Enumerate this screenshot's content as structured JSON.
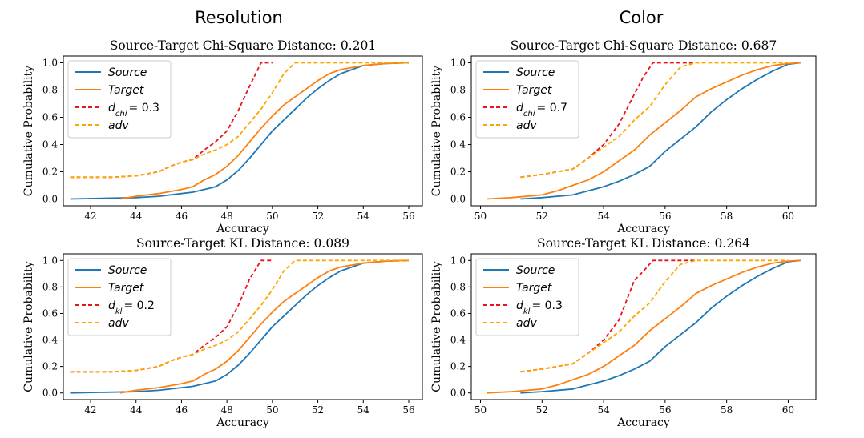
{
  "column_titles": [
    "Resolution",
    "Color"
  ],
  "colors": {
    "source": "#1f77b4",
    "target": "#ff7f0e",
    "dist": "#e8141c",
    "adv": "#ffa500"
  },
  "chart_data": [
    {
      "type": "line",
      "title": "Source-Target Chi-Square Distance: 0.201",
      "xlabel": "Accuracy",
      "ylabel": "Cumulative Probability",
      "xlim": [
        40.8,
        56.6
      ],
      "ylim": [
        -0.05,
        1.05
      ],
      "xticks": [
        42,
        44,
        46,
        48,
        50,
        52,
        54,
        56
      ],
      "yticks": [
        0.0,
        0.2,
        0.4,
        0.6,
        0.8,
        1.0
      ],
      "legend_position": "top-left",
      "grid": false,
      "series": [
        {
          "name": "Source",
          "style": "solid",
          "color_key": "source",
          "x": [
            41.1,
            44.0,
            45.0,
            46.0,
            46.5,
            47.0,
            47.5,
            48.0,
            48.5,
            49.0,
            49.5,
            50.0,
            50.5,
            51.0,
            51.5,
            52.0,
            52.5,
            53.0,
            53.5,
            54.0,
            55.0,
            56.0
          ],
          "y": [
            0.0,
            0.01,
            0.02,
            0.04,
            0.05,
            0.07,
            0.09,
            0.14,
            0.21,
            0.3,
            0.4,
            0.5,
            0.58,
            0.66,
            0.74,
            0.81,
            0.87,
            0.92,
            0.95,
            0.98,
            0.995,
            1.0
          ]
        },
        {
          "name": "Target",
          "style": "solid",
          "color_key": "target",
          "x": [
            43.3,
            44.0,
            45.0,
            46.0,
            46.5,
            47.0,
            47.5,
            48.0,
            48.5,
            49.0,
            49.5,
            50.0,
            50.5,
            51.0,
            51.5,
            52.0,
            52.5,
            53.0,
            54.0,
            55.0,
            56.0
          ],
          "y": [
            0.0,
            0.02,
            0.04,
            0.07,
            0.09,
            0.14,
            0.18,
            0.24,
            0.32,
            0.42,
            0.52,
            0.61,
            0.69,
            0.75,
            0.81,
            0.87,
            0.92,
            0.95,
            0.98,
            0.995,
            1.0
          ]
        },
        {
          "name": "d_chi = 0.3",
          "style": "dashed",
          "color_key": "dist",
          "x": [
            41.1,
            43.0,
            44.0,
            45.0,
            45.5,
            46.0,
            46.5,
            47.0,
            47.5,
            48.0,
            48.5,
            49.0,
            49.5,
            50.0
          ],
          "y": [
            0.16,
            0.16,
            0.17,
            0.2,
            0.24,
            0.27,
            0.29,
            0.36,
            0.42,
            0.5,
            0.65,
            0.83,
            1.0,
            1.0
          ]
        },
        {
          "name": "adv",
          "style": "dashed",
          "color_key": "adv",
          "x": [
            41.1,
            43.0,
            44.0,
            45.0,
            45.5,
            46.0,
            46.5,
            47.0,
            47.5,
            48.0,
            48.5,
            49.0,
            49.5,
            50.0,
            50.5,
            51.0,
            52.0,
            54.0,
            56.0
          ],
          "y": [
            0.16,
            0.16,
            0.17,
            0.2,
            0.24,
            0.27,
            0.29,
            0.33,
            0.36,
            0.4,
            0.46,
            0.56,
            0.66,
            0.78,
            0.92,
            1.0,
            1.0,
            1.0,
            1.0
          ]
        }
      ]
    },
    {
      "type": "line",
      "title": "Source-Target Chi-Square Distance: 0.687",
      "xlabel": "Accuracy",
      "ylabel": "Cumulative Probability",
      "xlim": [
        49.7,
        60.9
      ],
      "ylim": [
        -0.05,
        1.05
      ],
      "xticks": [
        50,
        52,
        54,
        56,
        58,
        60
      ],
      "yticks": [
        0.0,
        0.2,
        0.4,
        0.6,
        0.8,
        1.0
      ],
      "legend_position": "top-left",
      "grid": false,
      "series": [
        {
          "name": "Source",
          "style": "solid",
          "color_key": "source",
          "x": [
            51.3,
            52.0,
            53.0,
            54.0,
            54.5,
            55.0,
            55.5,
            56.0,
            56.5,
            57.0,
            57.5,
            58.0,
            58.5,
            59.0,
            59.5,
            60.0,
            60.4
          ],
          "y": [
            0.0,
            0.01,
            0.03,
            0.09,
            0.13,
            0.18,
            0.24,
            0.35,
            0.44,
            0.53,
            0.64,
            0.73,
            0.81,
            0.88,
            0.94,
            0.99,
            1.0
          ]
        },
        {
          "name": "Target",
          "style": "solid",
          "color_key": "target",
          "x": [
            50.2,
            51.0,
            52.0,
            52.5,
            53.0,
            53.5,
            54.0,
            54.5,
            55.0,
            55.5,
            56.0,
            56.5,
            57.0,
            57.5,
            58.0,
            58.5,
            59.0,
            59.5,
            60.0,
            60.4
          ],
          "y": [
            0.0,
            0.01,
            0.03,
            0.06,
            0.1,
            0.14,
            0.2,
            0.28,
            0.36,
            0.47,
            0.56,
            0.65,
            0.75,
            0.81,
            0.86,
            0.91,
            0.95,
            0.98,
            0.995,
            1.0
          ]
        },
        {
          "name": "d_chi = 0.7",
          "style": "dashed",
          "color_key": "dist",
          "x": [
            51.3,
            52.0,
            52.5,
            53.0,
            53.5,
            54.0,
            54.5,
            55.0,
            55.3,
            55.6,
            56.0,
            57.0
          ],
          "y": [
            0.16,
            0.18,
            0.2,
            0.22,
            0.3,
            0.4,
            0.55,
            0.77,
            0.9,
            1.0,
            1.0,
            1.0
          ]
        },
        {
          "name": "adv",
          "style": "dashed",
          "color_key": "adv",
          "x": [
            51.3,
            52.0,
            52.5,
            53.0,
            53.5,
            54.0,
            54.5,
            55.0,
            55.5,
            56.0,
            56.5,
            57.0,
            58.0,
            59.0,
            60.0
          ],
          "y": [
            0.16,
            0.18,
            0.2,
            0.22,
            0.3,
            0.38,
            0.46,
            0.58,
            0.68,
            0.84,
            0.97,
            1.0,
            1.0,
            1.0,
            1.0
          ]
        }
      ]
    },
    {
      "type": "line",
      "title": "Source-Target KL Distance: 0.089",
      "xlabel": "Accuracy",
      "ylabel": "Cumulative Probability",
      "xlim": [
        40.8,
        56.6
      ],
      "ylim": [
        -0.05,
        1.05
      ],
      "xticks": [
        42,
        44,
        46,
        48,
        50,
        52,
        54,
        56
      ],
      "yticks": [
        0.0,
        0.2,
        0.4,
        0.6,
        0.8,
        1.0
      ],
      "legend_position": "top-left",
      "grid": false,
      "series": [
        {
          "name": "Source",
          "style": "solid",
          "color_key": "source",
          "x": [
            41.1,
            44.0,
            45.0,
            46.0,
            46.5,
            47.0,
            47.5,
            48.0,
            48.5,
            49.0,
            49.5,
            50.0,
            50.5,
            51.0,
            51.5,
            52.0,
            52.5,
            53.0,
            53.5,
            54.0,
            55.0,
            56.0
          ],
          "y": [
            0.0,
            0.01,
            0.02,
            0.04,
            0.05,
            0.07,
            0.09,
            0.14,
            0.21,
            0.3,
            0.4,
            0.5,
            0.58,
            0.66,
            0.74,
            0.81,
            0.87,
            0.92,
            0.95,
            0.98,
            0.995,
            1.0
          ]
        },
        {
          "name": "Target",
          "style": "solid",
          "color_key": "target",
          "x": [
            43.3,
            44.0,
            45.0,
            46.0,
            46.5,
            47.0,
            47.5,
            48.0,
            48.5,
            49.0,
            49.5,
            50.0,
            50.5,
            51.0,
            51.5,
            52.0,
            52.5,
            53.0,
            54.0,
            55.0,
            56.0
          ],
          "y": [
            0.0,
            0.02,
            0.04,
            0.07,
            0.09,
            0.14,
            0.18,
            0.24,
            0.32,
            0.42,
            0.52,
            0.61,
            0.69,
            0.75,
            0.81,
            0.87,
            0.92,
            0.95,
            0.98,
            0.995,
            1.0
          ]
        },
        {
          "name": "d_kl = 0.2",
          "style": "dashed",
          "color_key": "dist",
          "x": [
            41.1,
            43.0,
            44.0,
            45.0,
            45.5,
            46.0,
            46.5,
            47.0,
            47.5,
            48.0,
            48.5,
            49.0,
            49.5,
            50.0
          ],
          "y": [
            0.16,
            0.16,
            0.17,
            0.2,
            0.24,
            0.27,
            0.29,
            0.36,
            0.42,
            0.5,
            0.66,
            0.86,
            1.0,
            1.0
          ]
        },
        {
          "name": "adv",
          "style": "dashed",
          "color_key": "adv",
          "x": [
            41.1,
            43.0,
            44.0,
            45.0,
            45.5,
            46.0,
            46.5,
            47.0,
            47.5,
            48.0,
            48.5,
            49.0,
            49.5,
            50.0,
            50.5,
            51.0,
            52.0,
            54.0,
            56.0
          ],
          "y": [
            0.16,
            0.16,
            0.17,
            0.2,
            0.24,
            0.27,
            0.29,
            0.33,
            0.36,
            0.4,
            0.46,
            0.56,
            0.66,
            0.78,
            0.92,
            1.0,
            1.0,
            1.0,
            1.0
          ]
        }
      ]
    },
    {
      "type": "line",
      "title": "Source-Target KL Distance: 0.264",
      "xlabel": "Accuracy",
      "ylabel": "Cumulative Probability",
      "xlim": [
        49.7,
        60.9
      ],
      "ylim": [
        -0.05,
        1.05
      ],
      "xticks": [
        50,
        52,
        54,
        56,
        58,
        60
      ],
      "yticks": [
        0.0,
        0.2,
        0.4,
        0.6,
        0.8,
        1.0
      ],
      "legend_position": "top-left",
      "grid": false,
      "series": [
        {
          "name": "Source",
          "style": "solid",
          "color_key": "source",
          "x": [
            51.3,
            52.0,
            53.0,
            54.0,
            54.5,
            55.0,
            55.5,
            56.0,
            56.5,
            57.0,
            57.5,
            58.0,
            58.5,
            59.0,
            59.5,
            60.0,
            60.4
          ],
          "y": [
            0.0,
            0.01,
            0.03,
            0.09,
            0.13,
            0.18,
            0.24,
            0.35,
            0.44,
            0.53,
            0.64,
            0.73,
            0.81,
            0.88,
            0.94,
            0.99,
            1.0
          ]
        },
        {
          "name": "Target",
          "style": "solid",
          "color_key": "target",
          "x": [
            50.2,
            51.0,
            52.0,
            52.5,
            53.0,
            53.5,
            54.0,
            54.5,
            55.0,
            55.5,
            56.0,
            56.5,
            57.0,
            57.5,
            58.0,
            58.5,
            59.0,
            59.5,
            60.0,
            60.4
          ],
          "y": [
            0.0,
            0.01,
            0.03,
            0.06,
            0.1,
            0.14,
            0.2,
            0.28,
            0.36,
            0.47,
            0.56,
            0.65,
            0.75,
            0.81,
            0.86,
            0.91,
            0.95,
            0.98,
            0.995,
            1.0
          ]
        },
        {
          "name": "d_kl = 0.3",
          "style": "dashed",
          "color_key": "dist",
          "x": [
            51.3,
            52.0,
            52.5,
            53.0,
            53.5,
            54.0,
            54.5,
            55.0,
            55.3,
            55.6,
            56.0,
            57.0
          ],
          "y": [
            0.16,
            0.18,
            0.2,
            0.22,
            0.3,
            0.4,
            0.55,
            0.85,
            0.92,
            1.0,
            1.0,
            1.0
          ]
        },
        {
          "name": "adv",
          "style": "dashed",
          "color_key": "adv",
          "x": [
            51.3,
            52.0,
            52.5,
            53.0,
            53.5,
            54.0,
            54.5,
            55.0,
            55.5,
            56.0,
            56.5,
            57.0,
            58.0,
            59.0,
            60.0
          ],
          "y": [
            0.16,
            0.18,
            0.2,
            0.22,
            0.3,
            0.38,
            0.46,
            0.58,
            0.68,
            0.84,
            0.97,
            1.0,
            1.0,
            1.0,
            1.0
          ]
        }
      ]
    }
  ]
}
